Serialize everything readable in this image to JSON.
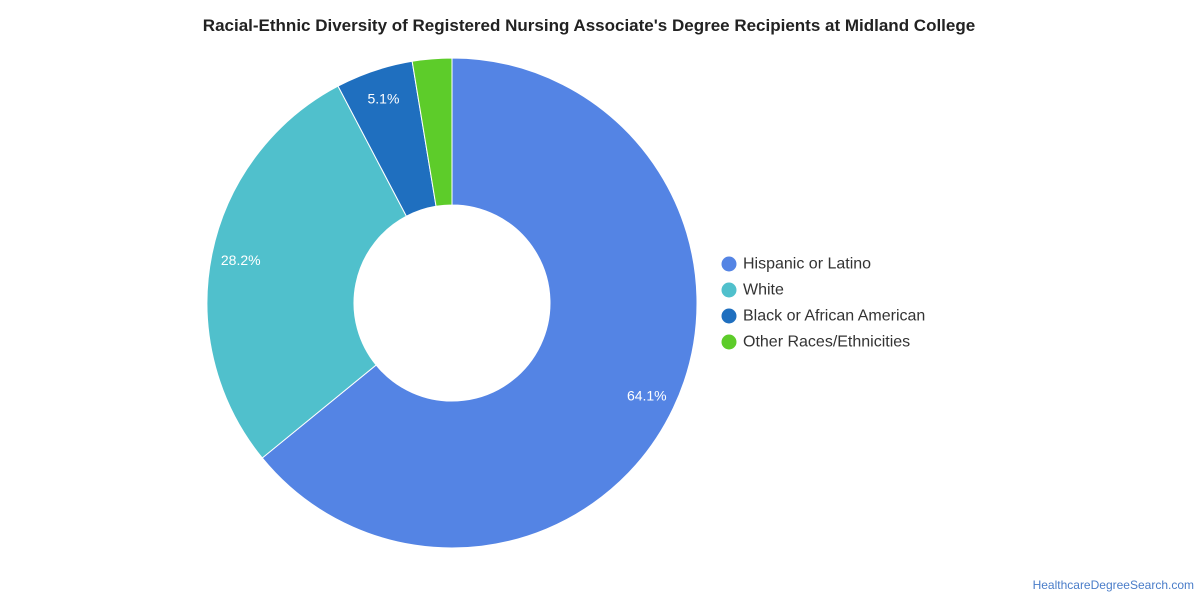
{
  "chart_data": {
    "type": "pie",
    "title": "Racial-Ethnic Diversity of Registered Nursing Associate's Degree Recipients at Midland College",
    "donut": true,
    "legend_position": "right",
    "slices": [
      {
        "name": "Hispanic or Latino",
        "value": 64.1,
        "label": "64.1%",
        "color": "#5484e4"
      },
      {
        "name": "White",
        "value": 28.2,
        "label": "28.2%",
        "color": "#50c0cc"
      },
      {
        "name": "Black or African American",
        "value": 5.1,
        "label": "5.1%",
        "color": "#1f6fbf"
      },
      {
        "name": "Other Races/Ethnicities",
        "value": 2.6,
        "label": "",
        "color": "#5dcc2a"
      }
    ]
  },
  "footer": {
    "source": "HealthcareDegreeSearch.com"
  }
}
